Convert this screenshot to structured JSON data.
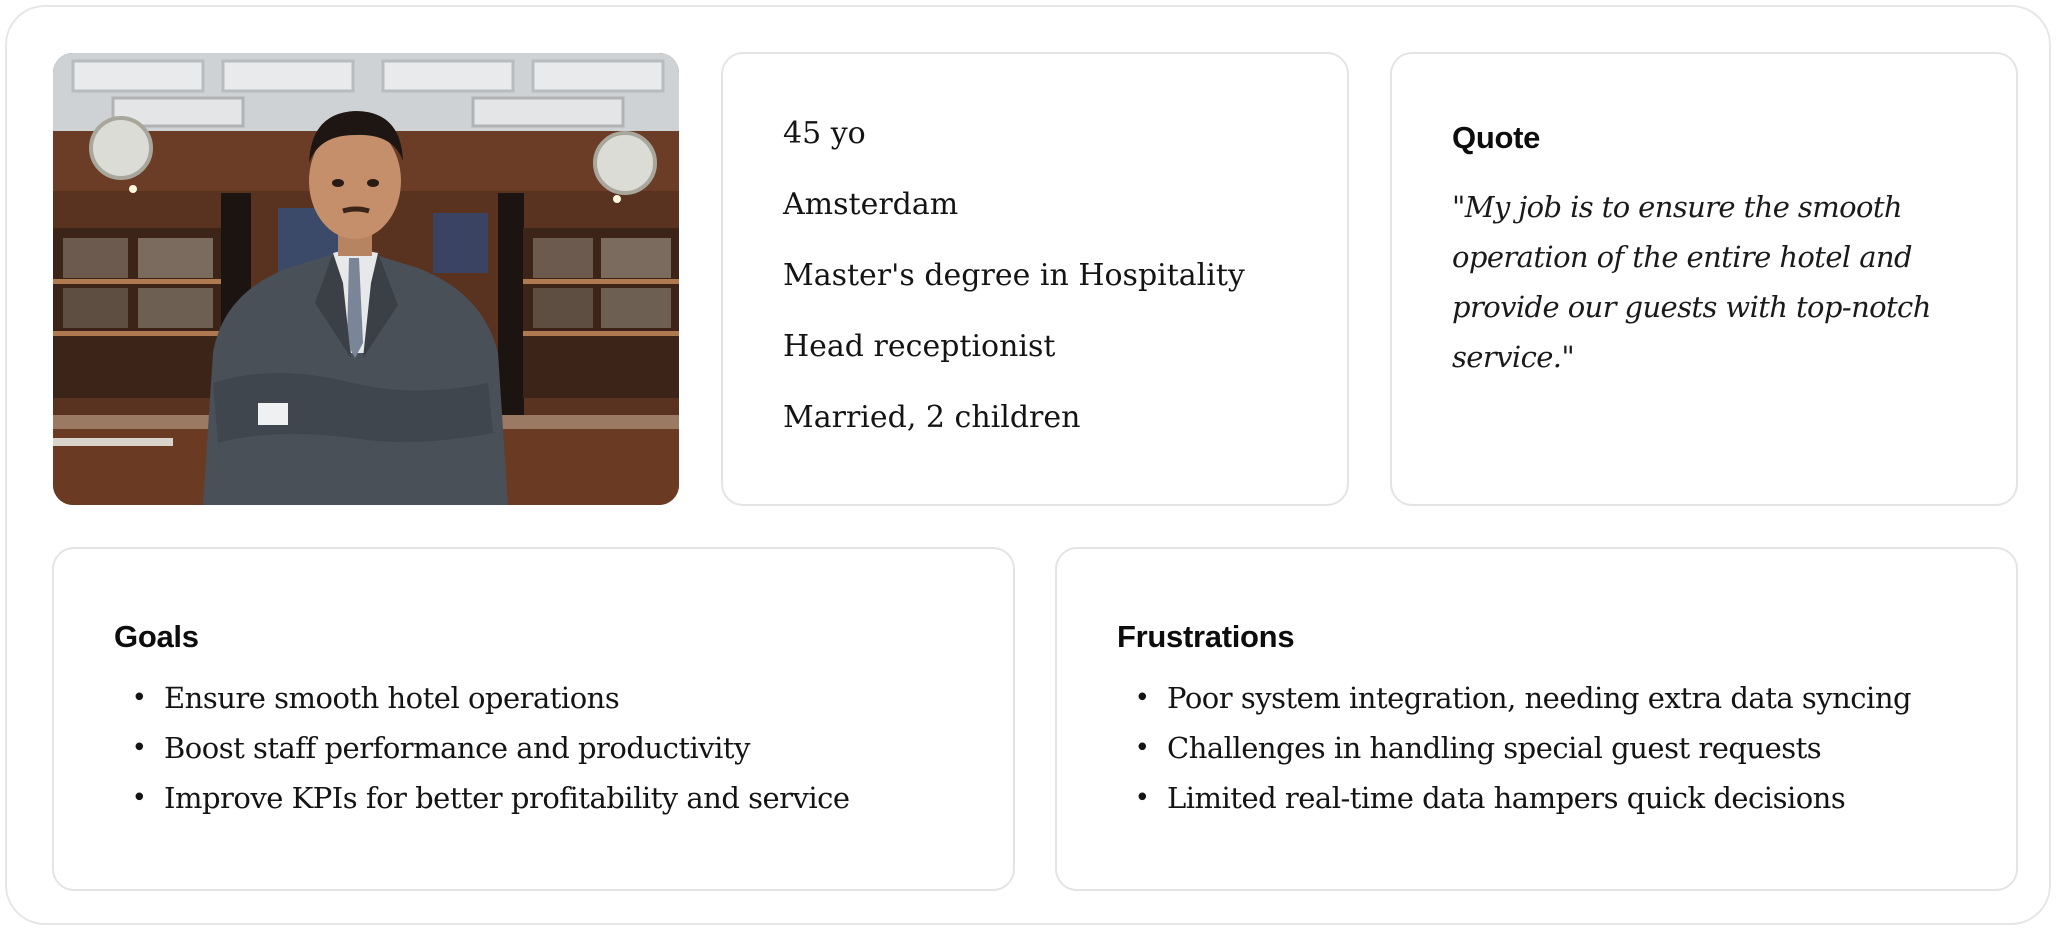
{
  "profile": {
    "photo_icon": "person-portrait-photo",
    "age": "45 yo",
    "location": "Amsterdam",
    "education": "Master's degree in Hospitality",
    "job": "Head receptionist",
    "family": "Married, 2 children"
  },
  "quote": {
    "title": "Quote",
    "text": "\"My job is to ensure the smooth operation of the entire hotel and provide our guests with top-notch service.\""
  },
  "goals": {
    "title": "Goals",
    "items": [
      "Ensure smooth hotel operations",
      "Boost staff performance and productivity",
      "Improve KPIs for better profitability and service"
    ]
  },
  "frustrations": {
    "title": "Frustrations",
    "items": [
      "Poor system integration, needing extra data syncing",
      "Challenges in handling special guest requests",
      "Limited real-time data hampers quick decisions"
    ]
  },
  "bullet_symbol": "•"
}
